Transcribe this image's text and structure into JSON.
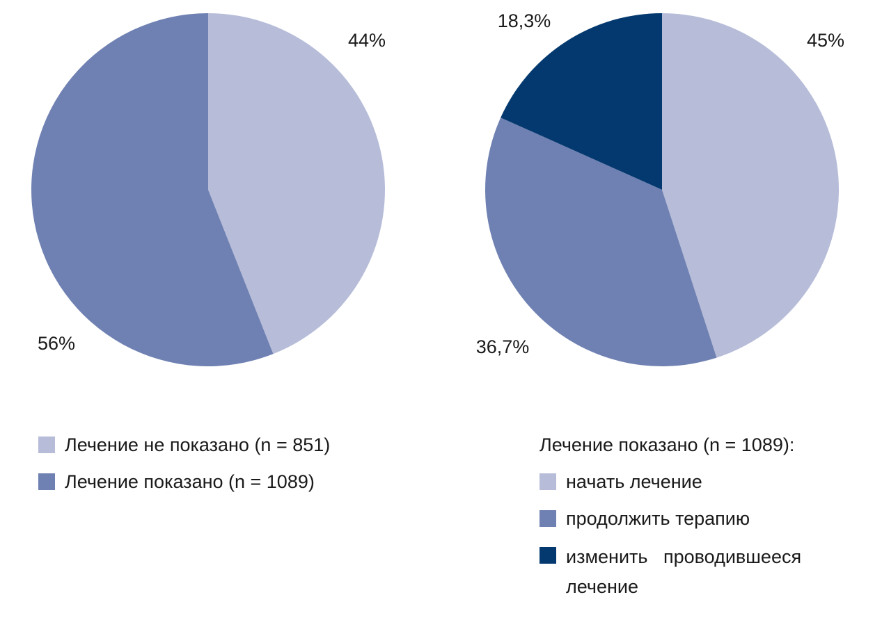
{
  "colors": {
    "light": "#b7bdd9",
    "medium": "#6f81b2",
    "dark": "#04396f"
  },
  "chart_data": [
    {
      "type": "pie",
      "slices": [
        {
          "name": "Лечение не показано (n = 851)",
          "value": 44,
          "label": "44%",
          "color": "#b7bdd9"
        },
        {
          "name": "Лечение показано (n = 1089)",
          "value": 56,
          "label": "56%",
          "color": "#6f81b2"
        }
      ],
      "legend": [
        {
          "label": "Лечение не показано (n = 851)",
          "color": "#b7bdd9"
        },
        {
          "label": "Лечение показано (n = 1089)",
          "color": "#6f81b2"
        }
      ],
      "legend_position": "bottom-left"
    },
    {
      "type": "pie",
      "slices": [
        {
          "name": "начать лечение",
          "value": 45,
          "label": "45%",
          "color": "#b7bdd9"
        },
        {
          "name": "продолжить терапию",
          "value": 36.7,
          "label": "36,7%",
          "color": "#6f81b2"
        },
        {
          "name": "изменить проводившееся лечение",
          "value": 18.3,
          "label": "18,3%",
          "color": "#04396f"
        }
      ],
      "legend_title": "Лечение показано (n = 1089):",
      "legend": [
        {
          "label": "начать лечение",
          "color": "#b7bdd9"
        },
        {
          "label": "продолжить терапию",
          "color": "#6f81b2"
        },
        {
          "label": "изменить   проводившееся лечение",
          "color": "#04396f"
        }
      ],
      "legend_position": "bottom-right"
    }
  ]
}
